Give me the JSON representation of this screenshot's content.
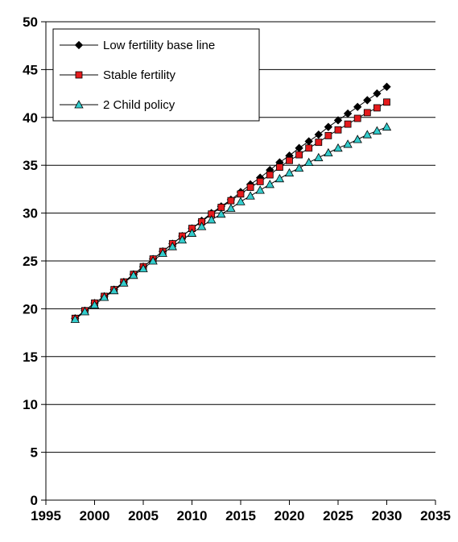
{
  "chart_data": {
    "type": "line",
    "title": "",
    "xlabel": "",
    "ylabel": "",
    "xlim": [
      1995,
      2035
    ],
    "ylim": [
      0,
      50
    ],
    "xticks": [
      "1995",
      "2000",
      "2005",
      "2010",
      "2015",
      "2020",
      "2025",
      "2030",
      "2035"
    ],
    "yticks": [
      "0",
      "5",
      "10",
      "15",
      "20",
      "25",
      "30",
      "35",
      "40",
      "45",
      "50"
    ],
    "grid": "horizontal",
    "legend_position": "top-left",
    "x": [
      1998,
      1999,
      2000,
      2001,
      2002,
      2003,
      2004,
      2005,
      2006,
      2007,
      2008,
      2009,
      2010,
      2011,
      2012,
      2013,
      2014,
      2015,
      2016,
      2017,
      2018,
      2019,
      2020,
      2021,
      2022,
      2023,
      2024,
      2025,
      2026,
      2027,
      2028,
      2029,
      2030
    ],
    "series": [
      {
        "name": "Low fertility base line",
        "marker": "diamond",
        "color": "#000000",
        "values": [
          19.0,
          19.8,
          20.6,
          21.3,
          22.0,
          22.8,
          23.6,
          24.4,
          25.2,
          26.0,
          26.8,
          27.6,
          28.4,
          29.2,
          30.0,
          30.7,
          31.4,
          32.2,
          33.0,
          33.7,
          34.5,
          35.3,
          36.0,
          36.8,
          37.5,
          38.2,
          39.0,
          39.7,
          40.4,
          41.1,
          41.8,
          42.5,
          43.2
        ]
      },
      {
        "name": "Stable fertility",
        "marker": "square",
        "color": "#e41a1c",
        "values": [
          19.0,
          19.8,
          20.6,
          21.3,
          22.0,
          22.8,
          23.6,
          24.4,
          25.2,
          26.0,
          26.8,
          27.6,
          28.4,
          29.1,
          29.9,
          30.6,
          31.3,
          32.0,
          32.7,
          33.3,
          34.0,
          34.8,
          35.5,
          36.1,
          36.8,
          37.4,
          38.1,
          38.7,
          39.3,
          39.9,
          40.5,
          41.0,
          41.6
        ]
      },
      {
        "name": "2 Child policy",
        "marker": "triangle",
        "color": "#33cccc",
        "values": [
          18.9,
          19.7,
          20.4,
          21.2,
          21.9,
          22.7,
          23.5,
          24.2,
          25.0,
          25.8,
          26.5,
          27.2,
          27.9,
          28.6,
          29.3,
          29.9,
          30.5,
          31.2,
          31.8,
          32.4,
          33.0,
          33.6,
          34.2,
          34.7,
          35.3,
          35.8,
          36.3,
          36.8,
          37.2,
          37.7,
          38.2,
          38.6,
          39.0
        ]
      }
    ]
  }
}
